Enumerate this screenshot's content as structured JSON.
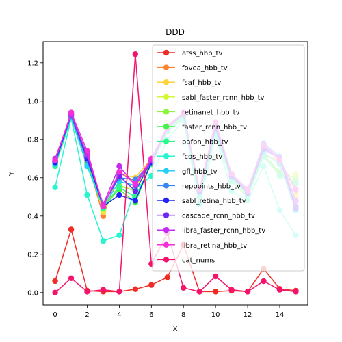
{
  "chart_data": {
    "type": "line",
    "title": "DDD",
    "xlabel": "X",
    "ylabel": "Y",
    "xlim": [
      -0.75,
      15.75
    ],
    "ylim": [
      -0.065,
      1.31
    ],
    "xticks": [
      0,
      2,
      4,
      6,
      8,
      10,
      12,
      14
    ],
    "yticks": [
      0.0,
      0.2,
      0.4,
      0.6,
      0.8,
      1.0,
      1.2
    ],
    "grid": false,
    "legend_placement": "top-right",
    "x": [
      0,
      1,
      2,
      3,
      4,
      5,
      6,
      7,
      8,
      9,
      10,
      11,
      12,
      13,
      14,
      15
    ],
    "series": [
      {
        "name": "atss_hbb_tv",
        "color": "#f22b26",
        "values": [
          0.06,
          0.33,
          0.01,
          0.005,
          0.005,
          0.018,
          0.04,
          0.08,
          0.25,
          0.005,
          0.005,
          0.01,
          0.005,
          0.125,
          0.02,
          0.01
        ]
      },
      {
        "name": "fovea_hbb_tv",
        "color": "#fd8433",
        "values": [
          0.69,
          0.92,
          0.69,
          0.4,
          0.63,
          0.58,
          0.68,
          0.85,
          0.93,
          0.52,
          0.85,
          0.6,
          0.52,
          0.72,
          0.69,
          0.53
        ]
      },
      {
        "name": "fsaf_hbb_tv",
        "color": "#fed43a",
        "values": [
          0.68,
          0.92,
          0.7,
          0.42,
          0.62,
          0.6,
          0.7,
          0.86,
          0.93,
          0.53,
          0.85,
          0.6,
          0.52,
          0.73,
          0.68,
          0.5
        ]
      },
      {
        "name": "sabl_faster_rcnn_hbb_tv",
        "color": "#d4f737",
        "values": [
          0.67,
          0.93,
          0.68,
          0.43,
          0.55,
          0.55,
          0.68,
          0.85,
          0.92,
          0.52,
          0.84,
          0.6,
          0.52,
          0.73,
          0.61,
          0.62
        ]
      },
      {
        "name": "retinanet_hbb_tv",
        "color": "#8bf63f",
        "values": [
          0.67,
          0.92,
          0.68,
          0.44,
          0.56,
          0.53,
          0.68,
          0.84,
          0.92,
          0.52,
          0.84,
          0.6,
          0.51,
          0.72,
          0.62,
          0.6
        ]
      },
      {
        "name": "faster_rcnn_hbb_tv",
        "color": "#42f446",
        "values": [
          0.67,
          0.92,
          0.67,
          0.45,
          0.54,
          0.47,
          0.68,
          0.84,
          0.92,
          0.5,
          0.84,
          0.59,
          0.51,
          0.72,
          0.63,
          0.58
        ]
      },
      {
        "name": "pafpn_hbb_tv",
        "color": "#2cf889",
        "values": [
          0.66,
          0.91,
          0.66,
          0.44,
          0.55,
          0.5,
          0.67,
          0.84,
          0.91,
          0.5,
          0.83,
          0.58,
          0.5,
          0.71,
          0.61,
          0.57
        ]
      },
      {
        "name": "fcos_hbb_tv",
        "color": "#26f5d0",
        "values": [
          0.55,
          0.91,
          0.51,
          0.27,
          0.3,
          0.54,
          0.61,
          0.8,
          0.9,
          0.46,
          0.82,
          0.53,
          0.48,
          0.66,
          0.43,
          0.3
        ]
      },
      {
        "name": "gfl_hbb_tv",
        "color": "#27cff5",
        "values": [
          0.67,
          0.92,
          0.66,
          0.45,
          0.58,
          0.56,
          0.68,
          0.85,
          0.93,
          0.52,
          0.85,
          0.6,
          0.52,
          0.73,
          0.67,
          0.43
        ]
      },
      {
        "name": "reppoints_hbb_tv",
        "color": "#3a86f4",
        "values": [
          0.68,
          0.92,
          0.69,
          0.46,
          0.6,
          0.59,
          0.68,
          0.86,
          0.93,
          0.53,
          0.86,
          0.61,
          0.53,
          0.78,
          0.71,
          0.48
        ]
      },
      {
        "name": "sabl_retina_hbb_tv",
        "color": "#2424f5",
        "values": [
          0.68,
          0.93,
          0.7,
          0.45,
          0.51,
          0.48,
          0.68,
          0.86,
          0.94,
          0.53,
          0.86,
          0.61,
          0.52,
          0.75,
          0.7,
          0.44
        ]
      },
      {
        "name": "cascade_rcnn_hbb_tv",
        "color": "#7127f2",
        "values": [
          0.69,
          0.93,
          0.71,
          0.46,
          0.61,
          0.53,
          0.69,
          0.86,
          0.94,
          0.53,
          0.87,
          0.61,
          0.53,
          0.76,
          0.7,
          0.45
        ]
      },
      {
        "name": "libra_faster_rcnn_hbb_tv",
        "color": "#c52af5",
        "values": [
          0.7,
          0.93,
          0.72,
          0.46,
          0.66,
          0.56,
          0.69,
          0.86,
          0.94,
          0.54,
          0.88,
          0.62,
          0.53,
          0.77,
          0.7,
          0.48
        ]
      },
      {
        "name": "libra_retina_hbb_tv",
        "color": "#f42fd8",
        "values": [
          0.69,
          0.94,
          0.74,
          0.45,
          0.63,
          0.57,
          0.7,
          0.87,
          0.94,
          0.54,
          0.89,
          0.62,
          0.54,
          0.77,
          0.69,
          0.54
        ]
      },
      {
        "name": "cat_nums",
        "color": "#f3136b",
        "values": [
          0.0,
          0.075,
          0.005,
          0.015,
          0.005,
          1.245,
          0.15,
          0.31,
          0.025,
          0.005,
          0.085,
          0.015,
          0.005,
          0.06,
          0.015,
          0.005
        ]
      }
    ]
  }
}
